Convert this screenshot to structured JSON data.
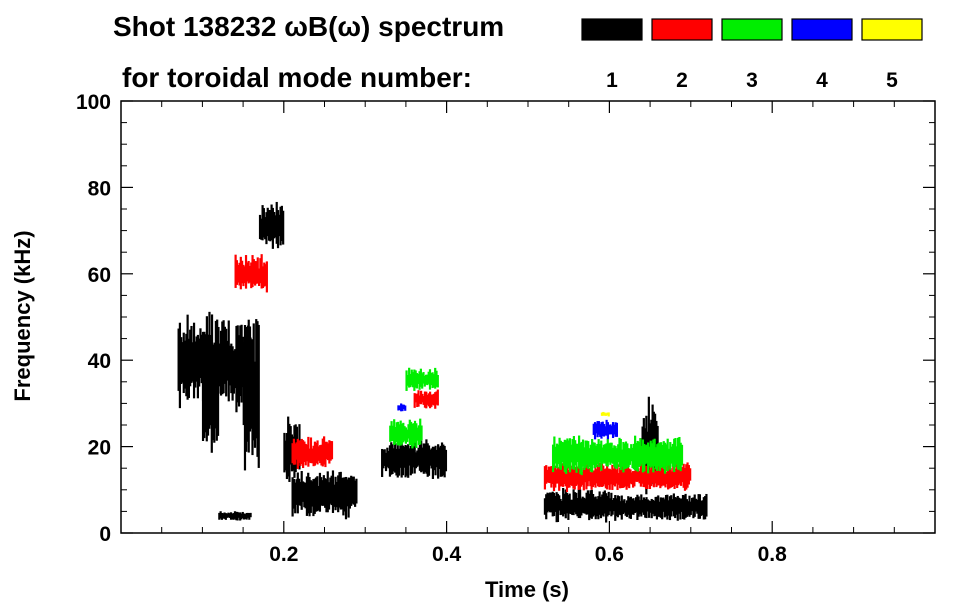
{
  "chart_data": {
    "type": "spectrogram",
    "title_line1": "Shot 138232 ωB(ω) spectrum",
    "title_line2": "for toroidal mode number:",
    "xlabel": "Time (s)",
    "ylabel": "Frequency (kHz)",
    "xlim": [
      0.0,
      1.0
    ],
    "ylim": [
      0,
      100
    ],
    "xticks": [
      0.2,
      0.4,
      0.6,
      0.8
    ],
    "xtick_labels": [
      "0.2",
      "0.4",
      "0.6",
      "0.8"
    ],
    "yticks": [
      0,
      20,
      40,
      60,
      80,
      100
    ],
    "ytick_labels": [
      "0",
      "20",
      "40",
      "60",
      "80",
      "100"
    ],
    "grid": false,
    "legend_placement": "top",
    "legend": [
      {
        "label": "1",
        "color": "#000000"
      },
      {
        "label": "2",
        "color": "#ff0000"
      },
      {
        "label": "3",
        "color": "#00ee00"
      },
      {
        "label": "4",
        "color": "#0000ff"
      },
      {
        "label": "5",
        "color": "#ffff00"
      }
    ],
    "series": [
      {
        "mode": 1,
        "color": "#000000",
        "regions": [
          {
            "t": [
              0.07,
              0.13
            ],
            "f": [
              30,
              50
            ]
          },
          {
            "t": [
              0.1,
              0.12
            ],
            "f": [
              20,
              42
            ]
          },
          {
            "t": [
              0.13,
              0.16
            ],
            "f": [
              28,
              48
            ]
          },
          {
            "t": [
              0.15,
              0.17
            ],
            "f": [
              15,
              50
            ]
          },
          {
            "t": [
              0.17,
              0.2
            ],
            "f": [
              66,
              76
            ]
          },
          {
            "t": [
              0.12,
              0.16
            ],
            "f": [
              3,
              5
            ]
          },
          {
            "t": [
              0.21,
              0.29
            ],
            "f": [
              4,
              14
            ]
          },
          {
            "t": [
              0.2,
              0.22
            ],
            "f": [
              12,
              26
            ]
          },
          {
            "t": [
              0.32,
              0.4
            ],
            "f": [
              13,
              21
            ]
          },
          {
            "t": [
              0.52,
              0.6
            ],
            "f": [
              3,
              10
            ]
          },
          {
            "t": [
              0.6,
              0.72
            ],
            "f": [
              3,
              9
            ]
          },
          {
            "t": [
              0.64,
              0.66
            ],
            "f": [
              10,
              30
            ]
          }
        ]
      },
      {
        "mode": 2,
        "color": "#ff0000",
        "regions": [
          {
            "t": [
              0.14,
              0.18
            ],
            "f": [
              56,
              64
            ]
          },
          {
            "t": [
              0.21,
              0.26
            ],
            "f": [
              15,
              22
            ]
          },
          {
            "t": [
              0.36,
              0.39
            ],
            "f": [
              29,
              33
            ]
          },
          {
            "t": [
              0.52,
              0.7
            ],
            "f": [
              10,
              16
            ]
          }
        ]
      },
      {
        "mode": 3,
        "color": "#00ee00",
        "regions": [
          {
            "t": [
              0.35,
              0.39
            ],
            "f": [
              33,
              38
            ]
          },
          {
            "t": [
              0.33,
              0.37
            ],
            "f": [
              20,
              26
            ]
          },
          {
            "t": [
              0.53,
              0.69
            ],
            "f": [
              14,
              22
            ]
          }
        ]
      },
      {
        "mode": 4,
        "color": "#0000ff",
        "regions": [
          {
            "t": [
              0.34,
              0.35
            ],
            "f": [
              28,
              30
            ]
          },
          {
            "t": [
              0.58,
              0.61
            ],
            "f": [
              22,
              26
            ]
          }
        ]
      },
      {
        "mode": 5,
        "color": "#ffff00",
        "regions": [
          {
            "t": [
              0.59,
              0.6
            ],
            "f": [
              27,
              28
            ]
          }
        ]
      }
    ]
  }
}
